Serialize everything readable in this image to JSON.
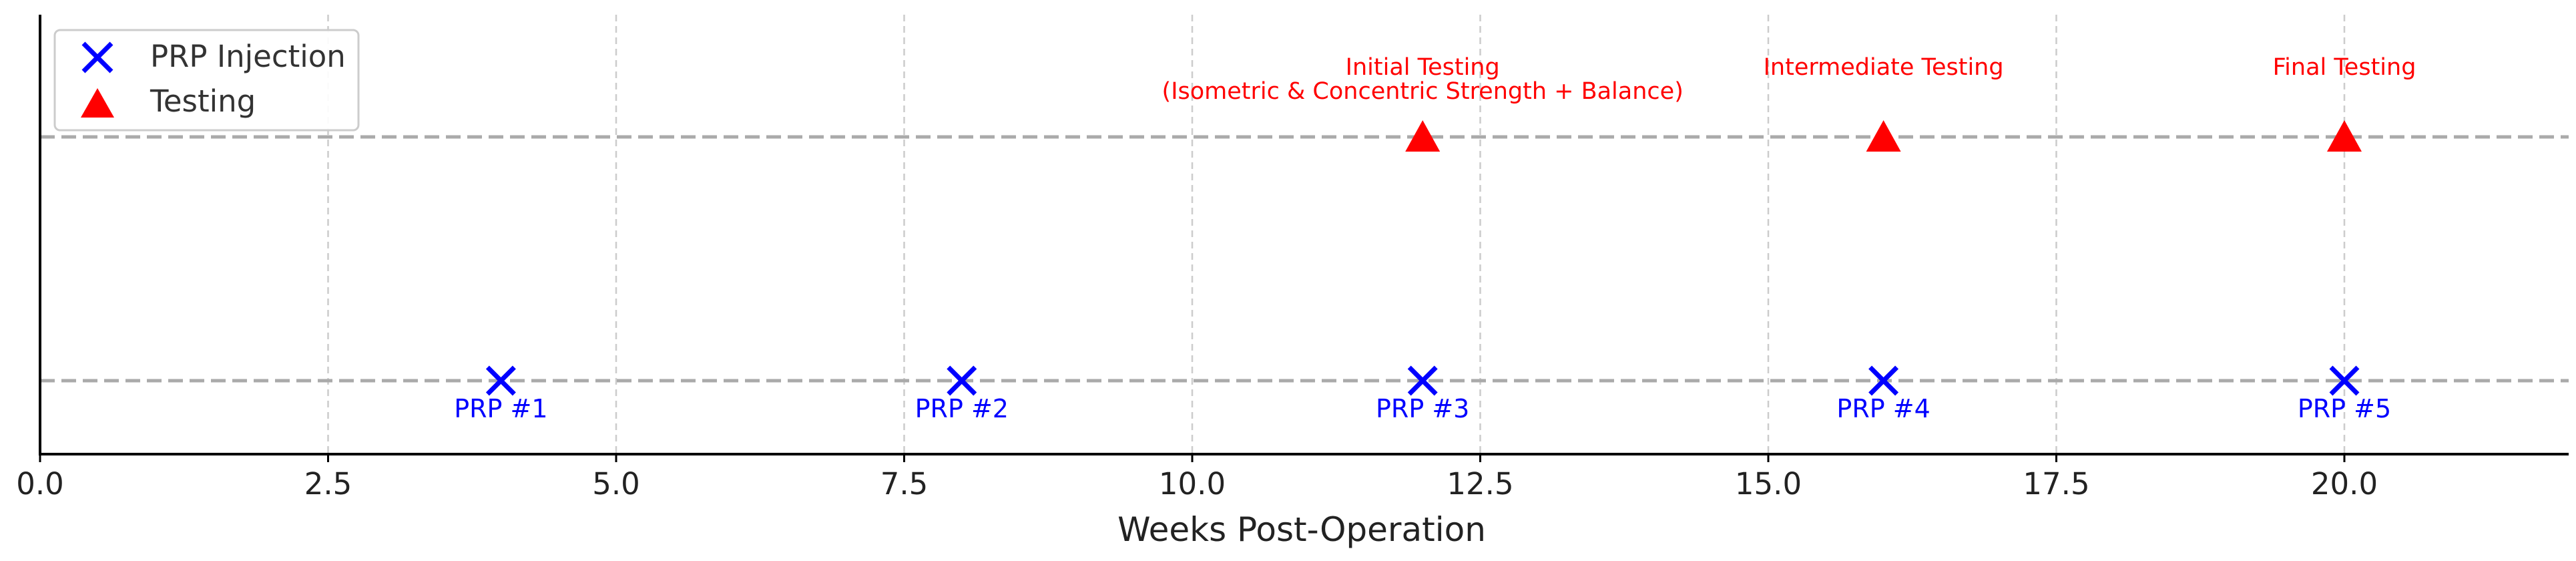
{
  "chart_data": {
    "type": "scatter",
    "xlabel": "Weeks Post-Operation",
    "xlim": [
      0,
      22
    ],
    "x_ticks": [
      "0.0",
      "2.5",
      "5.0",
      "7.5",
      "10.0",
      "12.5",
      "15.0",
      "17.5",
      "20.0"
    ],
    "x_tick_values": [
      0,
      2.5,
      5,
      7.5,
      10,
      12.5,
      15,
      17.5,
      20
    ],
    "grid": "vertical dashed",
    "legend_position": "top-left",
    "series": [
      {
        "name": "PRP Injection",
        "marker": "x",
        "color": "#0000ff",
        "lane": "lower",
        "points": [
          {
            "x": 4,
            "label": "PRP #1"
          },
          {
            "x": 8,
            "label": "PRP #2"
          },
          {
            "x": 12,
            "label": "PRP #3"
          },
          {
            "x": 16,
            "label": "PRP #4"
          },
          {
            "x": 20,
            "label": "PRP #5"
          }
        ]
      },
      {
        "name": "Testing",
        "marker": "triangle",
        "color": "#ff0000",
        "lane": "upper",
        "points": [
          {
            "x": 12,
            "label": [
              "Initial Testing",
              "(Isometric & Concentric Strength + Balance)"
            ]
          },
          {
            "x": 16,
            "label": [
              "Intermediate Testing"
            ]
          },
          {
            "x": 20,
            "label": [
              "Final Testing"
            ]
          }
        ]
      }
    ]
  }
}
